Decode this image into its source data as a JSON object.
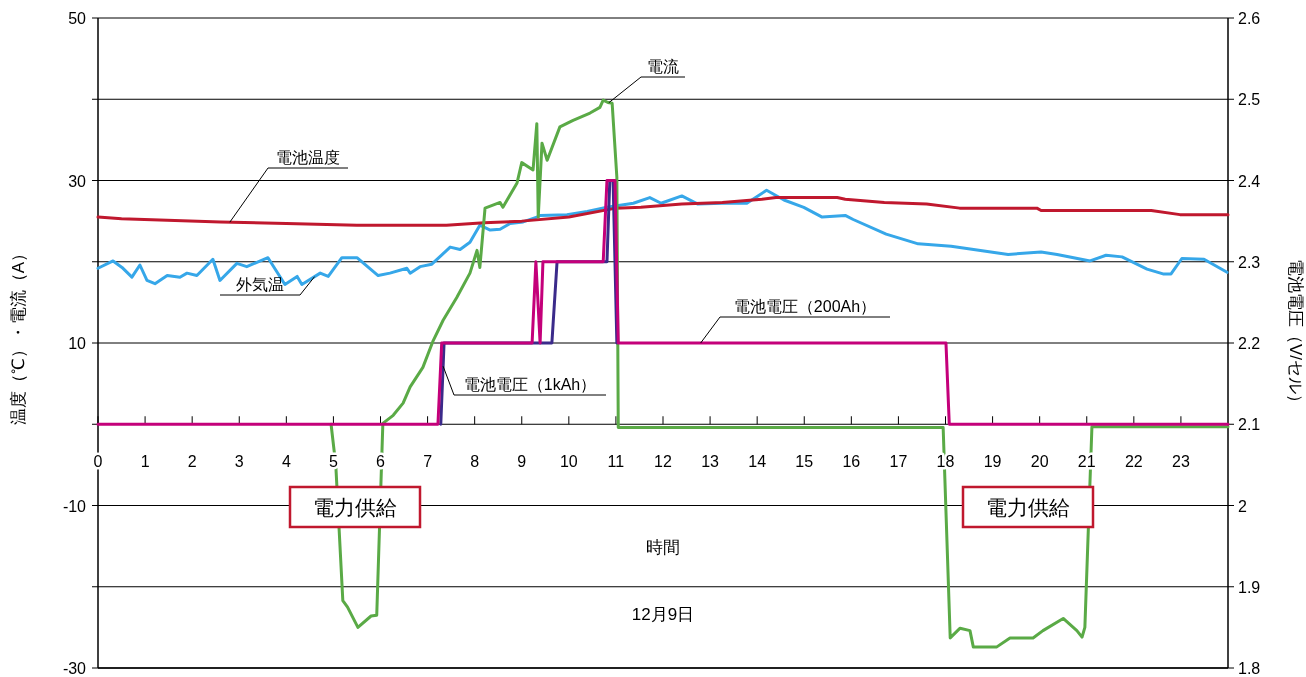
{
  "chart_data": {
    "type": "line",
    "xlabel": "時間",
    "ylabel": "温度（℃）・電流（A）",
    "y2label": "電池電圧（V/セル）",
    "annotations": [
      "電力供給",
      "電力供給",
      "12月9日"
    ],
    "xlim": [
      0,
      24
    ],
    "xticks": [
      0,
      1,
      2,
      3,
      4,
      5,
      6,
      7,
      8,
      9,
      10,
      11,
      12,
      13,
      14,
      15,
      16,
      17,
      18,
      19,
      20,
      21,
      22,
      23
    ],
    "ylim": [
      -30,
      50
    ],
    "yticks": [
      -30,
      {
        "value": -20,
        "label": null
      },
      -10,
      {
        "value": 0,
        "label": null
      },
      10,
      {
        "value": 20,
        "label": null
      },
      30,
      {
        "value": 40,
        "label": null
      },
      50
    ],
    "y2lim": [
      1.8,
      2.6
    ],
    "y2ticks": [
      1.8,
      1.9,
      2,
      2.1,
      2.2,
      2.3,
      2.4,
      2.5,
      2.6
    ],
    "grid": "y",
    "series": [
      {
        "name": "外気温",
        "color": "#36a7e9",
        "x": [
          0,
          0.32,
          0.51,
          0.72,
          0.89,
          1.04,
          1.21,
          1.47,
          1.74,
          1.89,
          2.1,
          2.44,
          2.59,
          2.95,
          3.16,
          3.61,
          3.97,
          4.23,
          4.33,
          4.72,
          4.89,
          5.18,
          5.5,
          5.95,
          6.2,
          6.56,
          6.63,
          6.84,
          7.09,
          7.48,
          7.69,
          7.9,
          8.11,
          8.33,
          8.54,
          8.75,
          9.03,
          9.32,
          9.39,
          9.96,
          10.39,
          10.81,
          11.37,
          11.72,
          11.96,
          12.4,
          12.74,
          13.25,
          13.78,
          14.2,
          14.57,
          14.99,
          15.38,
          15.87,
          16.04,
          16.74,
          17.42,
          18.12,
          19.33,
          20.03,
          20.37,
          21.07,
          21.41,
          21.75,
          22.28,
          22.62,
          22.79,
          23.02,
          23.49,
          23.98
        ],
        "values": [
          19.2,
          20.1,
          19.3,
          18.1,
          19.6,
          17.7,
          17.3,
          18.3,
          18.1,
          18.6,
          18.3,
          20.3,
          17.7,
          19.8,
          19.4,
          20.5,
          17.2,
          18.2,
          17.2,
          18.6,
          18.2,
          20.5,
          20.5,
          18.3,
          18.6,
          19.2,
          18.6,
          19.4,
          19.7,
          21.8,
          21.5,
          22.4,
          24.5,
          23.9,
          24,
          24.7,
          24.9,
          25.5,
          25.7,
          25.8,
          26.2,
          26.7,
          27.2,
          27.9,
          27.2,
          28.1,
          27.1,
          27.2,
          27.2,
          28.8,
          27.6,
          26.7,
          25.5,
          25.7,
          25.2,
          23.4,
          22.2,
          21.9,
          20.9,
          21.2,
          20.9,
          20.1,
          20.8,
          20.6,
          19.1,
          18.5,
          18.5,
          20.4,
          20.3,
          18.7
        ]
      },
      {
        "name": "電池温度",
        "color": "#c0182e",
        "x": [
          0,
          0.5,
          1.47,
          2.6,
          4.0,
          5.5,
          7.4,
          8.2,
          9.0,
          10.0,
          11.0,
          11.53,
          12.4,
          13.26,
          14.1,
          14.4,
          15.7,
          15.87,
          16.7,
          17.6,
          18.3,
          19.94,
          20.03,
          22.37,
          22.98,
          24
        ],
        "values": [
          25.5,
          25.3,
          25.1,
          24.9,
          24.7,
          24.5,
          24.5,
          24.8,
          25.0,
          25.5,
          26.6,
          26.7,
          27.1,
          27.3,
          27.7,
          27.9,
          27.9,
          27.7,
          27.3,
          27.1,
          26.6,
          26.6,
          26.3,
          26.3,
          25.8,
          25.8
        ]
      },
      {
        "name": "電流",
        "color": "#5aaa46",
        "x": [
          4.95,
          5.05,
          5.2,
          5.3,
          5.52,
          5.8,
          5.92,
          6.05,
          6.27,
          6.48,
          6.63,
          6.9,
          7.12,
          7.33,
          7.62,
          7.9,
          8.05,
          8.11,
          8.22,
          8.54,
          8.6,
          8.9,
          9.0,
          9.24,
          9.32,
          9.35,
          9.43,
          9.54,
          9.81,
          10.09,
          10.45,
          10.66,
          10.73,
          10.83,
          10.92,
          11.02,
          11.05,
          17.95,
          18.1,
          18.31,
          18.52,
          18.59,
          19.09,
          19.37,
          19.86,
          20.07,
          20.5,
          20.79,
          20.9,
          20.96,
          21.11,
          24
        ],
        "values": [
          0,
          -5,
          -21.7,
          -22.5,
          -25,
          -23.6,
          -23.5,
          0.1,
          1.1,
          2.6,
          4.6,
          7,
          10.3,
          12.8,
          15.6,
          18.6,
          21.4,
          19.3,
          26.6,
          27.3,
          26.7,
          29.7,
          32.2,
          31.3,
          37,
          25.5,
          34.6,
          32.5,
          36.6,
          37.4,
          38.3,
          39,
          39.9,
          39.6,
          39.5,
          30.4,
          -0.4,
          -0.4,
          -26.3,
          -25.1,
          -25.4,
          -27.4,
          -27.4,
          -26.3,
          -26.3,
          -25.4,
          -23.9,
          -25.4,
          -26.2,
          -25,
          -0.3,
          -0.3
        ]
      },
      {
        "name": "電池電圧（1kAh）",
        "color": "#3b2a8a",
        "axis": "y2",
        "x": [
          7.28,
          7.35,
          9.64,
          9.75,
          10.81,
          10.87,
          10.94,
          11.02
        ],
        "values": [
          2.1,
          2.2,
          2.2,
          2.3,
          2.3,
          2.4,
          2.4,
          2.2
        ]
      },
      {
        "name": "電池電圧（200Ah）",
        "color": "#c4007a",
        "axis": "y2",
        "x": [
          0,
          7.22,
          7.3,
          9.22,
          9.3,
          9.39,
          9.45,
          10.73,
          10.81,
          10.98,
          11.05,
          18.01,
          18.08,
          24
        ],
        "values": [
          2.1,
          2.1,
          2.2,
          2.2,
          2.3,
          2.2,
          2.3,
          2.3,
          2.4,
          2.4,
          2.2,
          2.2,
          2.1,
          2.1
        ]
      }
    ]
  }
}
